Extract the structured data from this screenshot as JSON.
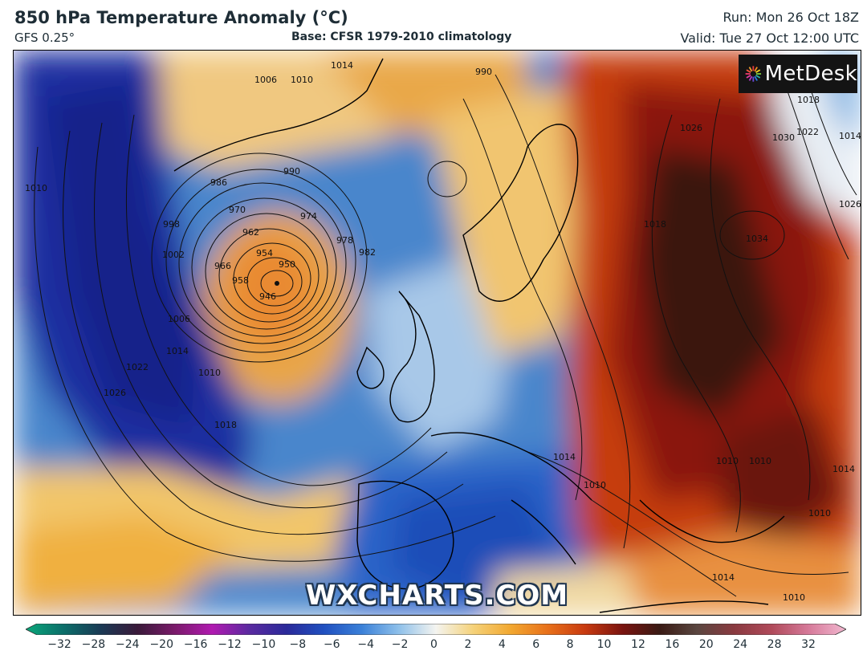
{
  "header": {
    "title": "850 hPa Temperature Anomaly (°C)",
    "model": "GFS 0.25°",
    "base": "Base: CFSR 1979-2010 climatology",
    "run": "Run: Mon 26 Oct 18Z",
    "valid": "Valid: Tue 27 Oct 12:00 UTC"
  },
  "logo": {
    "text": "MetDesk"
  },
  "watermark": "WXCHARTS.COM",
  "colorbar": {
    "ticks": [
      "−32",
      "−28",
      "−24",
      "−20",
      "−16",
      "−12",
      "−10",
      "−8",
      "−6",
      "−4",
      "−2",
      "0",
      "2",
      "4",
      "6",
      "8",
      "10",
      "12",
      "16",
      "20",
      "24",
      "28",
      "32"
    ],
    "colors": [
      "#0aa77a",
      "#0b6f6a",
      "#1a3a55",
      "#3a1a3a",
      "#7a1a6a",
      "#b01ab0",
      "#5a2aa0",
      "#2a2a9a",
      "#2050c0",
      "#3a80d8",
      "#8ec0ea",
      "#f4f4f0",
      "#f5d27a",
      "#f2a830",
      "#e8701a",
      "#c83a10",
      "#7a1410",
      "#3a1a14",
      "#5a4640",
      "#8a3a40",
      "#b04a5a",
      "#d67a9a",
      "#f2b8d0"
    ]
  },
  "pressure_labels": [
    "1006",
    "1010",
    "1014",
    "990",
    "986",
    "990",
    "970",
    "974",
    "978",
    "982",
    "962",
    "954",
    "950",
    "966",
    "958",
    "946",
    "1002",
    "998",
    "1010",
    "1006",
    "1014",
    "1022",
    "1026",
    "1030",
    "1034",
    "1018",
    "1022",
    "1026",
    "1018",
    "1014",
    "1010",
    "1026",
    "1018",
    "1014",
    "1010",
    "1010",
    "1010",
    "1014",
    "1010",
    "1014",
    "1010"
  ]
}
